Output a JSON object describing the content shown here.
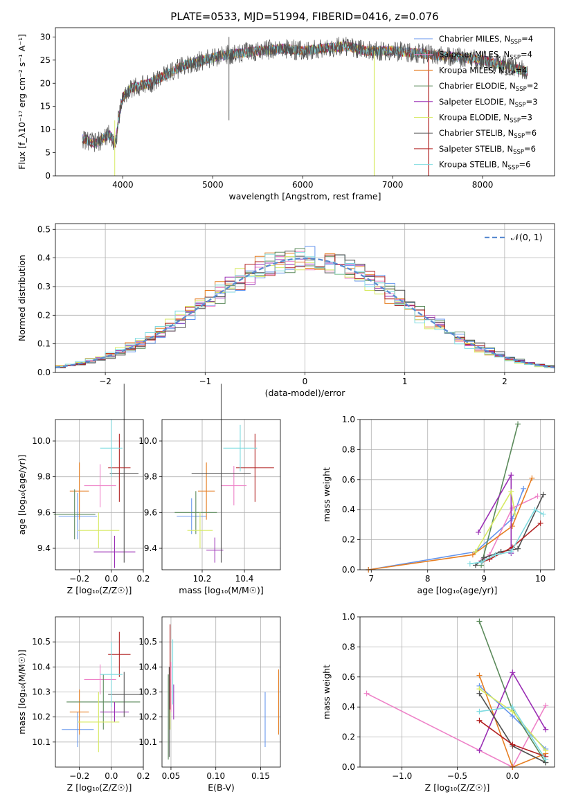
{
  "figure": {
    "title": "PLATE=0533, MJD=51994, FIBERID=0416, z=0.076"
  },
  "models": [
    {
      "label": "Chabrier MILES, N_SSP=4",
      "base": "Chabrier MILES, N",
      "sub": "SSP",
      "suffix": "=4",
      "color": "#6495ed"
    },
    {
      "label": "Salpeter MILES, N_SSP=4",
      "base": "Salpeter MILES, N",
      "sub": "SSP",
      "suffix": "=4",
      "color": "#ee82c8"
    },
    {
      "label": "Kroupa MILES, N_SSP=4",
      "base": "Kroupa MILES, N",
      "sub": "SSP",
      "suffix": "=4",
      "color": "#e67e22"
    },
    {
      "label": "Chabrier ELODIE, N_SSP=2",
      "base": "Chabrier ELODIE, N",
      "sub": "SSP",
      "suffix": "=2",
      "color": "#5b8a5b"
    },
    {
      "label": "Salpeter ELODIE, N_SSP=3",
      "base": "Salpeter ELODIE, N",
      "sub": "SSP",
      "suffix": "=3",
      "color": "#9b30b5"
    },
    {
      "label": "Kroupa ELODIE, N_SSP=3",
      "base": "Kroupa ELODIE, N",
      "sub": "SSP",
      "suffix": "=3",
      "color": "#d7ea63"
    },
    {
      "label": "Chabrier STELIB, N_SSP=6",
      "base": "Chabrier STELIB, N",
      "sub": "SSP",
      "suffix": "=6",
      "color": "#505050"
    },
    {
      "label": "Salpeter STELIB, N_SSP=6",
      "base": "Salpeter STELIB, N",
      "sub": "SSP",
      "suffix": "=6",
      "color": "#b22222"
    },
    {
      "label": "Kroupa STELIB, N_SSP=6",
      "base": "Kroupa STELIB, N",
      "sub": "SSP",
      "suffix": "=6",
      "color": "#7fdbe0"
    }
  ],
  "chart_data": [
    {
      "id": "spectrum",
      "type": "line",
      "xlabel": "wavelength [Angstrom, rest frame]",
      "ylabel": "Flux [f_λ10⁻¹⁷ erg cm⁻² s⁻¹ A⁻¹]",
      "xlim": [
        3250,
        8800
      ],
      "ylim": [
        0,
        32
      ],
      "xticks": [
        4000,
        5000,
        6000,
        7000,
        8000
      ],
      "yticks": [
        0,
        5,
        10,
        15,
        20,
        25,
        30
      ],
      "grid": false,
      "legend": "right",
      "continuum": {
        "x": [
          3550,
          3700,
          3850,
          3920,
          3950,
          4000,
          4100,
          4300,
          4500,
          4700,
          4900,
          5100,
          5300,
          5500,
          5800,
          6000,
          6200,
          6500,
          6700,
          7000,
          7300,
          7500,
          7800,
          8000,
          8200,
          8400,
          8500
        ],
        "y": [
          8,
          7,
          9,
          7,
          12,
          17,
          19,
          20,
          22,
          24,
          25,
          26,
          26.5,
          27,
          27.5,
          27,
          27.5,
          28,
          27,
          27,
          26.5,
          26,
          25.5,
          25,
          24,
          23,
          22.5
        ]
      },
      "wavelength_range": [
        3550,
        8500
      ]
    },
    {
      "id": "residuals",
      "type": "histogram",
      "xlabel": "(data-model)/error",
      "ylabel": "Normed distribution",
      "xlim": [
        -2.5,
        2.5
      ],
      "ylim": [
        0,
        0.52
      ],
      "xticks": [
        -2,
        -1,
        0,
        1,
        2
      ],
      "yticks": [
        0.0,
        0.1,
        0.2,
        0.3,
        0.4,
        0.5
      ],
      "grid": true,
      "legend": "top-right",
      "reference": {
        "label": "𝒩(0, 1)",
        "mean": 0,
        "sigma": 1,
        "color": "#5b8bd0"
      },
      "bin_width": 0.1
    },
    {
      "id": "age_vs_Z",
      "type": "scatter",
      "xlabel": "Z [log₁₀(Z/Z☉)]",
      "ylabel": "age  [log₁₀(age/yr)]",
      "xlim": [
        -0.35,
        0.2
      ],
      "ylim": [
        9.28,
        10.12
      ],
      "xticks": [
        -0.2,
        0.0,
        0.2
      ],
      "yticks": [
        9.4,
        9.6,
        9.8,
        10.0
      ],
      "grid": true,
      "points": [
        {
          "x": -0.21,
          "y": 9.58,
          "xerr": 0.12,
          "yerr": 0.13
        },
        {
          "x": -0.07,
          "y": 9.75,
          "xerr": 0.1,
          "yerr": 0.12
        },
        {
          "x": -0.2,
          "y": 9.72,
          "xerr": 0.06,
          "yerr": 0.16
        },
        {
          "x": -0.23,
          "y": 9.59,
          "xerr": 0.13,
          "yerr": 0.14
        },
        {
          "x": 0.02,
          "y": 9.38,
          "xerr": 0.13,
          "yerr": 0.09
        },
        {
          "x": -0.08,
          "y": 9.5,
          "xerr": 0.13,
          "yerr": 0.1
        },
        {
          "x": 0.08,
          "y": 9.82,
          "xerr": 0.09,
          "yerr": 0.5
        },
        {
          "x": 0.05,
          "y": 9.85,
          "xerr": 0.07,
          "yerr": 0.19
        },
        {
          "x": 0.0,
          "y": 9.96,
          "xerr": 0.07,
          "yerr": 0.16
        }
      ]
    },
    {
      "id": "age_vs_mass",
      "type": "scatter",
      "xlabel": "mass [log₁₀(M/M☉)]",
      "ylabel": "",
      "xlim": [
        10.01,
        10.57
      ],
      "ylim": [
        9.28,
        10.12
      ],
      "xticks": [
        10.2,
        10.4
      ],
      "yticks": [
        9.4,
        9.6,
        9.8,
        10.0
      ],
      "grid": true,
      "points": [
        {
          "x": 10.15,
          "y": 9.58,
          "xerr": 0.07,
          "yerr": 0.1
        },
        {
          "x": 10.35,
          "y": 9.75,
          "xerr": 0.06,
          "yerr": 0.11
        },
        {
          "x": 10.22,
          "y": 9.72,
          "xerr": 0.04,
          "yerr": 0.16
        },
        {
          "x": 10.17,
          "y": 9.6,
          "xerr": 0.1,
          "yerr": 0.12
        },
        {
          "x": 10.26,
          "y": 9.39,
          "xerr": 0.04,
          "yerr": 0.07
        },
        {
          "x": 10.19,
          "y": 9.5,
          "xerr": 0.06,
          "yerr": 0.1
        },
        {
          "x": 10.29,
          "y": 9.82,
          "xerr": 0.14,
          "yerr": 0.5
        },
        {
          "x": 10.45,
          "y": 9.85,
          "xerr": 0.09,
          "yerr": 0.19
        },
        {
          "x": 10.38,
          "y": 9.96,
          "xerr": 0.08,
          "yerr": 0.13
        }
      ]
    },
    {
      "id": "weight_vs_age",
      "type": "line",
      "xlabel": "age  [log₁₀(age/yr)]",
      "ylabel": "mass weight",
      "xlim": [
        6.8,
        10.25
      ],
      "ylim": [
        0,
        1.0
      ],
      "xticks": [
        7,
        8,
        9,
        10
      ],
      "yticks": [
        0.0,
        0.2,
        0.4,
        0.6,
        0.8,
        1.0
      ],
      "grid": true,
      "series": [
        {
          "x": [
            6.95,
            8.85,
            9.5,
            9.7
          ],
          "y": [
            0.0,
            0.12,
            0.34,
            0.54
          ]
        },
        {
          "x": [
            8.95,
            9.1,
            9.5,
            9.95
          ],
          "y": [
            0.06,
            0.1,
            0.41,
            0.49
          ]
        },
        {
          "x": [
            6.95,
            8.8,
            9.5,
            9.85
          ],
          "y": [
            0.0,
            0.1,
            0.29,
            0.61
          ]
        },
        {
          "x": [
            8.95,
            9.6
          ],
          "y": [
            0.03,
            0.97
          ]
        },
        {
          "x": [
            8.9,
            9.48,
            9.48
          ],
          "y": [
            0.25,
            0.63,
            0.11
          ]
        },
        {
          "x": [
            8.85,
            9.48,
            9.55
          ],
          "y": [
            0.12,
            0.52,
            0.37
          ]
        },
        {
          "x": [
            8.85,
            9.0,
            9.3,
            9.6,
            10.05
          ],
          "y": [
            0.03,
            0.08,
            0.12,
            0.14,
            0.5
          ]
        },
        {
          "x": [
            8.95,
            9.1,
            9.5,
            10.0
          ],
          "y": [
            0.05,
            0.07,
            0.15,
            0.31
          ]
        },
        {
          "x": [
            8.75,
            8.95,
            9.2,
            9.48,
            9.9,
            10.05
          ],
          "y": [
            0.04,
            0.05,
            0.1,
            0.12,
            0.4,
            0.37
          ]
        }
      ]
    },
    {
      "id": "mass_vs_Z",
      "type": "scatter",
      "xlabel": "Z [log₁₀(Z/Z☉)]",
      "ylabel": "mass [log₁₀(M/M☉)]",
      "xlim": [
        -0.35,
        0.2
      ],
      "ylim": [
        10.0,
        10.6
      ],
      "xticks": [
        -0.2,
        0.0,
        0.2
      ],
      "yticks": [
        10.1,
        10.2,
        10.3,
        10.4,
        10.5
      ],
      "grid": true,
      "points": [
        {
          "x": -0.21,
          "y": 10.15,
          "xerr": 0.1,
          "yerr": 0.07
        },
        {
          "x": -0.07,
          "y": 10.35,
          "xerr": 0.1,
          "yerr": 0.06
        },
        {
          "x": -0.2,
          "y": 10.22,
          "xerr": 0.06,
          "yerr": 0.09
        },
        {
          "x": -0.05,
          "y": 10.26,
          "xerr": 0.23,
          "yerr": 0.11
        },
        {
          "x": 0.02,
          "y": 10.22,
          "xerr": 0.09,
          "yerr": 0.04
        },
        {
          "x": -0.08,
          "y": 10.18,
          "xerr": 0.13,
          "yerr": 0.12
        },
        {
          "x": 0.08,
          "y": 10.29,
          "xerr": 0.1,
          "yerr": 0.09
        },
        {
          "x": 0.05,
          "y": 10.45,
          "xerr": 0.07,
          "yerr": 0.09
        },
        {
          "x": 0.0,
          "y": 10.37,
          "xerr": 0.07,
          "yerr": 0.13
        }
      ]
    },
    {
      "id": "mass_vs_ebv",
      "type": "scatter",
      "xlabel": "E(B-V)",
      "ylabel": "",
      "xlim": [
        0.04,
        0.172
      ],
      "ylim": [
        10.0,
        10.6
      ],
      "xticks": [
        0.05,
        0.1,
        0.15
      ],
      "yticks": [
        10.1,
        10.2,
        10.3,
        10.4,
        10.5
      ],
      "grid": true,
      "points": [
        {
          "x": 0.155,
          "y": 10.19,
          "xerr": 0,
          "yerr": 0.11
        },
        {
          "x": 0.05,
          "y": 10.32,
          "xerr": 0,
          "yerr": 0.1
        },
        {
          "x": 0.17,
          "y": 10.26,
          "xerr": 0,
          "yerr": 0.13
        },
        {
          "x": 0.047,
          "y": 10.2,
          "xerr": 0,
          "yerr": 0.17
        },
        {
          "x": 0.053,
          "y": 10.26,
          "xerr": 0,
          "yerr": 0.07
        },
        {
          "x": 0.049,
          "y": 10.25,
          "xerr": 0,
          "yerr": 0.1
        },
        {
          "x": 0.048,
          "y": 10.22,
          "xerr": 0,
          "yerr": 0.18
        },
        {
          "x": 0.049,
          "y": 10.4,
          "xerr": 0,
          "yerr": 0.17
        },
        {
          "x": 0.052,
          "y": 10.38,
          "xerr": 0,
          "yerr": 0.13
        }
      ]
    },
    {
      "id": "weight_vs_Z",
      "type": "line",
      "xlabel": "Z [log₁₀(Z/Z☉)]",
      "ylabel": "mass weight",
      "xlim": [
        -1.38,
        0.38
      ],
      "ylim": [
        0,
        1.0
      ],
      "xticks": [
        -1.0,
        -0.5,
        0.0
      ],
      "yticks": [
        0.0,
        0.2,
        0.4,
        0.6,
        0.8,
        1.0
      ],
      "grid": true,
      "series": [
        {
          "x": [
            -0.3,
            0.0,
            0.3
          ],
          "y": [
            0.54,
            0.34,
            0.12
          ]
        },
        {
          "x": [
            -1.32,
            0.0,
            0.3
          ],
          "y": [
            0.49,
            0.0,
            0.41
          ]
        },
        {
          "x": [
            -0.3,
            0.0,
            0.3
          ],
          "y": [
            0.61,
            0.0,
            0.09
          ]
        },
        {
          "x": [
            -0.3,
            0.0,
            0.3
          ],
          "y": [
            0.97,
            0.38,
            0.03
          ]
        },
        {
          "x": [
            -0.3,
            0.0,
            0.3
          ],
          "y": [
            0.11,
            0.63,
            0.25
          ]
        },
        {
          "x": [
            -0.3,
            0.0,
            0.3
          ],
          "y": [
            0.52,
            0.37,
            0.11
          ]
        },
        {
          "x": [
            -0.3,
            0.0,
            0.3
          ],
          "y": [
            0.49,
            0.14,
            0.03
          ]
        },
        {
          "x": [
            -0.3,
            0.0,
            0.3
          ],
          "y": [
            0.31,
            0.15,
            0.07
          ]
        },
        {
          "x": [
            -0.3,
            0.0,
            0.3
          ],
          "y": [
            0.37,
            0.4,
            0.05
          ]
        }
      ]
    }
  ]
}
